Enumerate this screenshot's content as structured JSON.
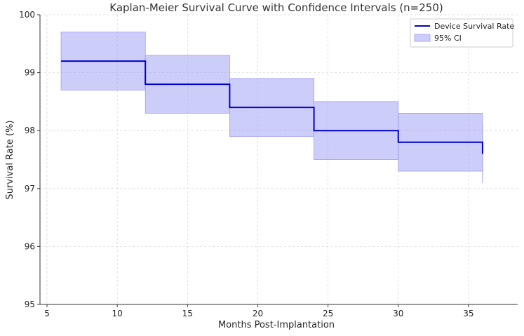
{
  "chart_data": {
    "type": "line",
    "title": "Kaplan-Meier Survival Curve with Confidence Intervals (n=250)",
    "xlabel": "Months Post-Implantation",
    "ylabel": "Survival Rate (%)",
    "xlim": [
      4.5,
      38.5
    ],
    "ylim": [
      95,
      100
    ],
    "xticks": [
      5,
      10,
      15,
      20,
      25,
      30,
      35
    ],
    "yticks": [
      95,
      96,
      97,
      98,
      99,
      100
    ],
    "grid": true,
    "legend_position": "top-right",
    "series": [
      {
        "name": "Device Survival Rate",
        "kind": "step-post",
        "color": "#0000cc",
        "x": [
          6,
          12,
          18,
          24,
          30,
          36
        ],
        "values": [
          99.2,
          98.8,
          98.4,
          98.0,
          97.8,
          97.6
        ]
      },
      {
        "name": "95% CI",
        "kind": "band",
        "color": "#9c9cf5",
        "x": [
          6,
          12,
          18,
          24,
          30,
          36
        ],
        "lower": [
          98.7,
          98.3,
          97.9,
          97.5,
          97.3,
          97.1
        ],
        "upper": [
          99.7,
          99.3,
          98.9,
          98.5,
          98.3,
          98.1
        ]
      }
    ]
  }
}
